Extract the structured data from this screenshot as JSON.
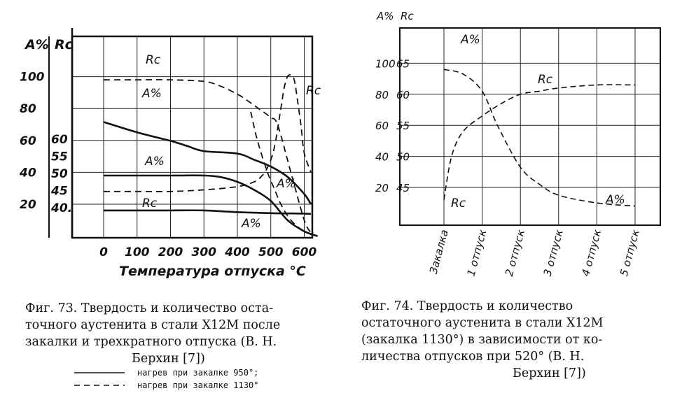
{
  "chart_data": [
    {
      "type": "line",
      "figure": "fig73",
      "y_left_label": "A%",
      "y_right_label": "Rc",
      "xlabel": "Температура отпуска °С",
      "x_ticks": [
        "0",
        "100",
        "200",
        "300",
        "400",
        "500",
        "600"
      ],
      "y_a_ticks": [
        "20",
        "40",
        "60",
        "80",
        "100"
      ],
      "y_rc_ticks": [
        "40.",
        "45",
        "50",
        "55",
        "60"
      ],
      "xlim": [
        0,
        680
      ],
      "ylim_a": [
        0,
        125
      ],
      "ylim_rc": [
        35,
        66
      ],
      "series": [
        {
          "name": "Rc",
          "style": "solid",
          "axis": "rc",
          "x": [
            0,
            100,
            200,
            250,
            300,
            400,
            450,
            500,
            550,
            600,
            620
          ],
          "y": [
            65,
            62,
            59.5,
            58,
            56.5,
            55.8,
            54,
            52,
            49,
            44,
            41
          ]
        },
        {
          "name": "A%",
          "style": "dashed",
          "axis": "a",
          "x": [
            0,
            100,
            200,
            300,
            350,
            400,
            430,
            470,
            490,
            500,
            520,
            560,
            600,
            620
          ],
          "y": [
            98,
            98,
            98,
            97,
            94,
            89,
            85,
            79,
            76,
            74,
            70,
            40,
            10,
            2
          ]
        },
        {
          "name": "Rc",
          "style": "solid",
          "axis": "rc",
          "x": [
            0,
            100,
            200,
            300,
            400,
            500,
            580,
            620
          ],
          "y": [
            39.2,
            39.2,
            39.2,
            39.2,
            38.7,
            38.4,
            38.3,
            38.2
          ]
        },
        {
          "name": "A%",
          "style": "solid",
          "axis": "a",
          "x": [
            0,
            100,
            200,
            300,
            350,
            400,
            450,
            500,
            550,
            600,
            640
          ],
          "y": [
            38,
            38,
            38,
            38,
            37,
            34,
            29,
            22,
            10,
            3,
            0
          ]
        },
        {
          "name": "A%",
          "style": "dashed",
          "axis": "a",
          "x": [
            0,
            100,
            200,
            300,
            400,
            450,
            470,
            490,
            510,
            530,
            540,
            550,
            560,
            570,
            580,
            590,
            600,
            620
          ],
          "y": [
            28,
            28,
            28,
            29,
            31,
            34,
            37,
            43,
            55,
            80,
            93,
            100,
            101,
            98,
            85,
            70,
            52,
            40
          ]
        },
        {
          "name": "",
          "style": "dashed",
          "axis": "a",
          "x": [
            440,
            460,
            490,
            510,
            530,
            560,
            600,
            640
          ],
          "y": [
            78,
            60,
            40,
            30,
            20,
            10,
            3,
            0
          ]
        }
      ],
      "labels": [
        "Rc",
        "A%",
        "Rc",
        "A%",
        "Rc",
        "A%",
        "A%"
      ]
    },
    {
      "type": "line",
      "figure": "fig74",
      "y_left_label": "A%",
      "y_right_label": "Rc",
      "categories": [
        "Закалка",
        "1 отпуск",
        "2 отпуск",
        "3 отпуск",
        "4 отпуск",
        "5 отпуск"
      ],
      "y_a_ticks": [
        "20",
        "40",
        "60",
        "80",
        "100"
      ],
      "y_rc_ticks": [
        "45",
        "50",
        "55",
        "60",
        "65"
      ],
      "series": [
        {
          "name": "A%",
          "style": "dashed",
          "x": [
            0,
            0.5,
            1,
            1.4,
            2,
            2.5,
            3,
            4,
            5
          ],
          "y": [
            96,
            93,
            82,
            60,
            33,
            22,
            15,
            10,
            8
          ]
        },
        {
          "name": "Rc",
          "style": "dashed",
          "x": [
            0,
            0.2,
            0.5,
            1,
            1.5,
            2,
            2.5,
            3,
            4,
            5
          ],
          "y": [
            43,
            50,
            54,
            56.5,
            58.5,
            60,
            60.5,
            61,
            61.5,
            61.5
          ]
        }
      ],
      "labels": [
        "A%",
        "Rc",
        "Rc",
        "A%"
      ]
    }
  ],
  "captions": {
    "fig73": [
      "Фиг. 73. Твердость и количество оста-",
      "точного аустенита в стали Х12М после",
      "закалки и трехкратного отпуска (В. Н.",
      "Берхин [7])"
    ],
    "fig74": [
      "Фиг. 74. Твердость и количество",
      "остаточного аустенита в стали Х12М",
      "(закалка 1130°) в зависимости от ко-",
      "личества отпусков при 520° (В. Н.",
      "Берхин [7])"
    ],
    "legend": [
      "нагрев при закалке 950°;",
      "нагрев при закалке 1130°"
    ]
  }
}
